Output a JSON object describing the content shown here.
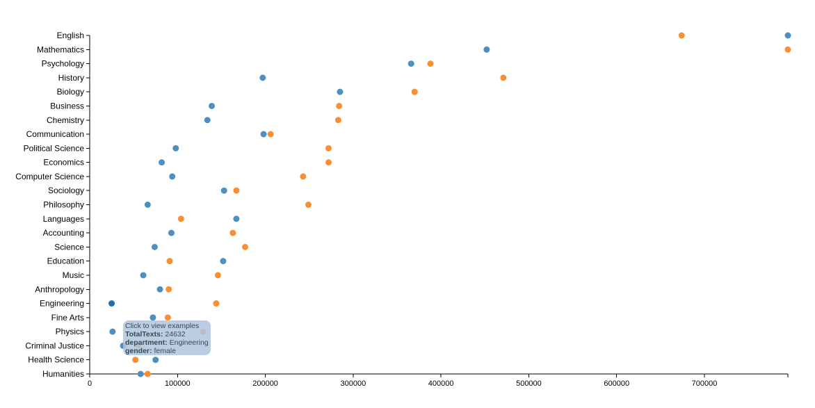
{
  "colors": {
    "male": "#4d8fbf",
    "female": "#f98f35",
    "highlight": "#1f6fae"
  },
  "chart_data": {
    "type": "scatter",
    "xlabel": "",
    "ylabel": "",
    "xlim": [
      0,
      795000
    ],
    "x_ticks": [
      "0",
      "100000",
      "200000",
      "300000",
      "400000",
      "500000",
      "600000",
      "700000"
    ],
    "x_tick_values": [
      0,
      100000,
      200000,
      300000,
      400000,
      500000,
      600000,
      700000
    ],
    "categories": [
      "English",
      "Mathematics",
      "Psychology",
      "History",
      "Biology",
      "Business",
      "Chemistry",
      "Communication",
      "Political Science",
      "Economics",
      "Computer Science",
      "Sociology",
      "Philosophy",
      "Languages",
      "Accounting",
      "Science",
      "Education",
      "Music",
      "Anthropology",
      "Engineering",
      "Fine Arts",
      "Physics",
      "Criminal Justice",
      "Health Science",
      "Humanities"
    ],
    "series": [
      {
        "key": "male",
        "values": [
          795000,
          452000,
          366000,
          197000,
          285000,
          139000,
          134000,
          198000,
          98000,
          82000,
          94000,
          153000,
          66000,
          167000,
          93000,
          74000,
          152000,
          61000,
          80000,
          25000,
          72000,
          26000,
          38000,
          75000,
          58000
        ]
      },
      {
        "key": "female",
        "values": [
          674000,
          795000,
          388000,
          471000,
          370000,
          284000,
          283000,
          206000,
          272000,
          272000,
          243000,
          167000,
          249000,
          104000,
          163000,
          177000,
          91000,
          146000,
          90000,
          144000,
          89000,
          129000,
          55000,
          52000,
          66000
        ]
      }
    ],
    "tooltip": {
      "line1": "Click to view examples",
      "total_label": "TotalTexts:",
      "total_value": "24632",
      "department_label": "department:",
      "department_value": "Engineering",
      "gender_label": "gender:",
      "gender_value": "female"
    }
  }
}
